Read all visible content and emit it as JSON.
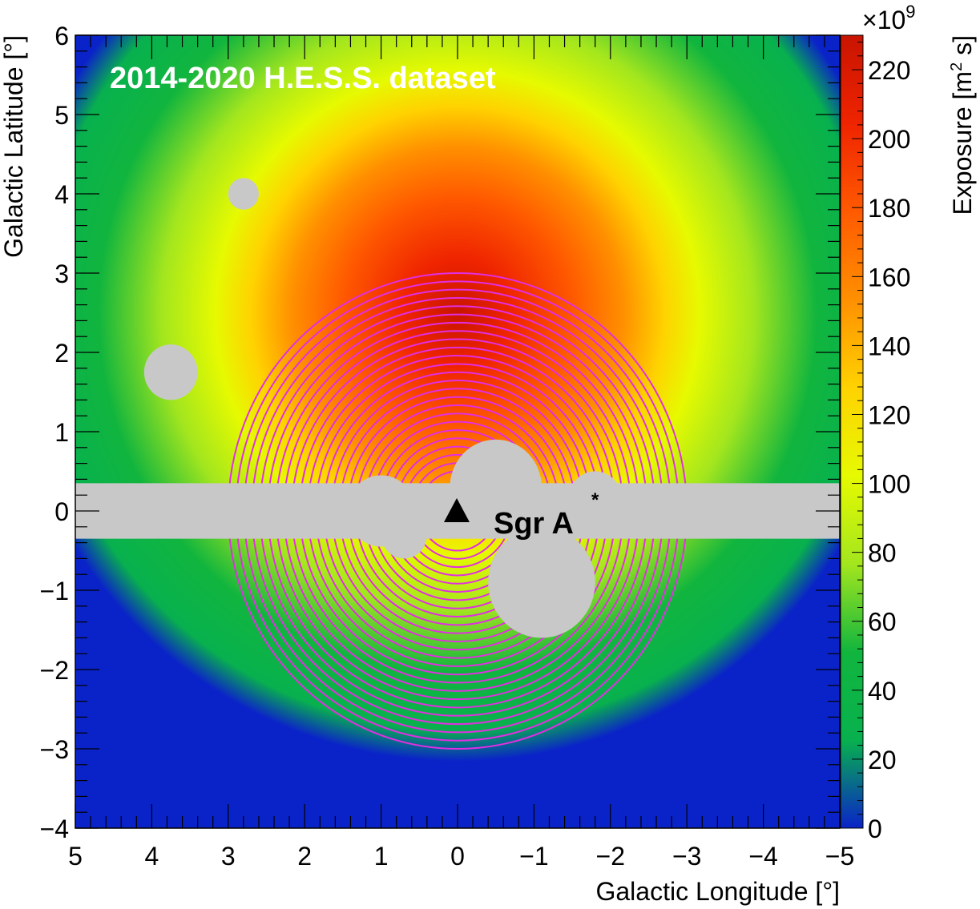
{
  "chart_data": {
    "type": "heatmap",
    "title": "",
    "annotation": "2014-2020 H.E.S.S. dataset",
    "source_label": {
      "name": "Sgr A",
      "superscript": "*",
      "l": 0.0,
      "b": 0.0
    },
    "xlabel": "Galactic Longitude [°]",
    "ylabel": "Galactic Latitude [°]",
    "zlabel": "Exposure [m² s]",
    "zlabel_base": "Exposure [m",
    "zlabel_sup": "2",
    "zlabel_tail": " s]",
    "zscale_label": "×10",
    "zscale_exp": "9",
    "xlim": [
      5,
      -5
    ],
    "ylim": [
      -4,
      6
    ],
    "zlim": [
      0,
      230
    ],
    "xticks": [
      5,
      4,
      3,
      2,
      1,
      0,
      -1,
      -2,
      -3,
      -4,
      -5
    ],
    "xtick_labels": [
      "5",
      "4",
      "3",
      "2",
      "1",
      "0",
      "−1",
      "−2",
      "−3",
      "−4",
      "−5"
    ],
    "yticks": [
      -4,
      -3,
      -2,
      -1,
      0,
      1,
      2,
      3,
      4,
      5,
      6
    ],
    "ytick_labels": [
      "−4",
      "−3",
      "−2",
      "−1",
      "0",
      "1",
      "2",
      "3",
      "4",
      "5",
      "6"
    ],
    "zticks": [
      0,
      20,
      40,
      60,
      80,
      100,
      120,
      140,
      160,
      180,
      200,
      220
    ],
    "ztick_labels": [
      "0",
      "20",
      "40",
      "60",
      "80",
      "100",
      "120",
      "140",
      "160",
      "180",
      "200",
      "220"
    ],
    "exposure_peak": {
      "l": 0.0,
      "b": 2.5,
      "value": 230
    },
    "roi_rings": {
      "center_l": 0.0,
      "center_b": 0.0,
      "inner_radius_deg": 0.5,
      "outer_radius_deg": 3.0,
      "count": 25
    },
    "exclusion_band": {
      "l_min": -5,
      "l_max": 5,
      "b_min": -0.35,
      "b_max": 0.35
    },
    "exclusion_regions": [
      {
        "l": 2.8,
        "b": 4.0,
        "r": 0.2
      },
      {
        "l": 3.75,
        "b": 1.75,
        "r": 0.35
      },
      {
        "l": 1.0,
        "b": 0.0,
        "r": 0.45
      },
      {
        "l": -0.5,
        "b": 0.3,
        "r": 0.6
      },
      {
        "l": -1.1,
        "b": -0.9,
        "r": 0.7
      },
      {
        "l": -1.8,
        "b": 0.15,
        "r": 0.35
      },
      {
        "l": 0.7,
        "b": -0.3,
        "r": 0.3
      }
    ],
    "grid": false,
    "colors": {
      "mask": "#c8c8c8",
      "rings": "#e22ee2",
      "annotation": "#ffffff",
      "colormap": [
        "#0a23c8",
        "#08b14e",
        "#11b53e",
        "#a3e61e",
        "#e6fa00",
        "#ffd200",
        "#ff9000",
        "#ff5a00",
        "#ef2400",
        "#c81400"
      ]
    }
  }
}
